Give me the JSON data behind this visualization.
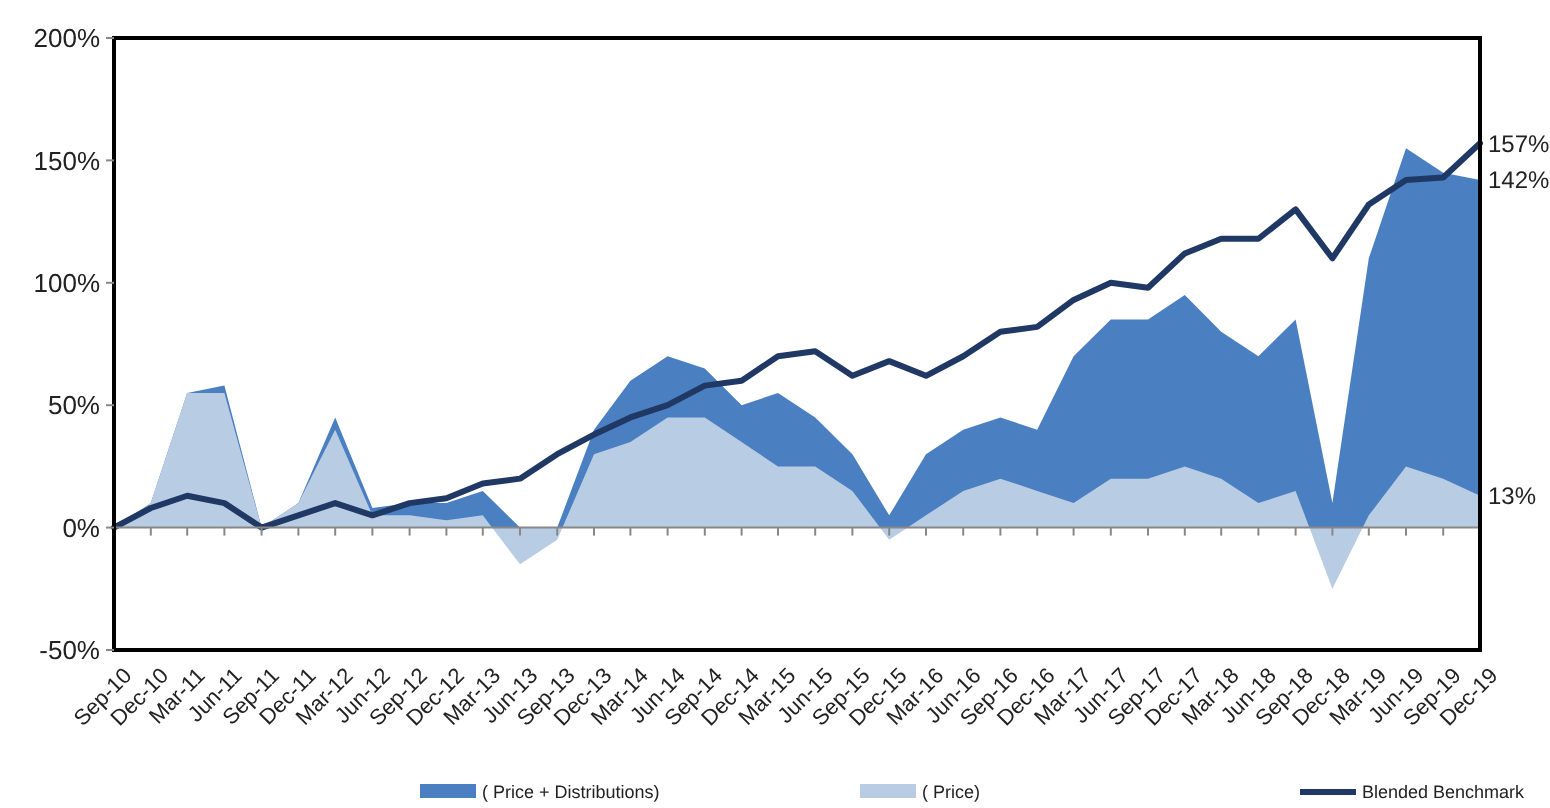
{
  "chart_data": {
    "type": "area",
    "x": [
      "2010-09",
      "2010-12",
      "2011-03",
      "2011-06",
      "2011-09",
      "2011-12",
      "2012-03",
      "2012-06",
      "2012-09",
      "2012-12",
      "2013-03",
      "2013-06",
      "2013-09",
      "2013-12",
      "2014-03",
      "2014-06",
      "2014-09",
      "2014-12",
      "2015-03",
      "2015-06",
      "2015-09",
      "2015-12",
      "2016-03",
      "2016-06",
      "2016-09",
      "2016-12",
      "2017-03",
      "2017-06",
      "2017-09",
      "2017-12",
      "2018-03",
      "2018-06",
      "2018-09",
      "2018-12",
      "2019-03",
      "2019-06",
      "2019-09",
      "2019-12"
    ],
    "series": [
      {
        "name": "( Price + Distributions)",
        "color": "#4a7fc1",
        "values": [
          0,
          10,
          55,
          58,
          0,
          10,
          45,
          8,
          10,
          10,
          15,
          0,
          0,
          40,
          60,
          70,
          65,
          50,
          55,
          45,
          30,
          5,
          30,
          40,
          45,
          40,
          70,
          85,
          85,
          95,
          80,
          70,
          85,
          10,
          110,
          155,
          145,
          142
        ]
      },
      {
        "name": "( Price)",
        "color": "#b8cce4",
        "values": [
          0,
          10,
          55,
          55,
          0,
          10,
          40,
          5,
          5,
          3,
          5,
          -15,
          -5,
          30,
          35,
          45,
          45,
          35,
          25,
          25,
          15,
          -5,
          5,
          15,
          20,
          15,
          10,
          20,
          20,
          25,
          20,
          10,
          15,
          -25,
          5,
          25,
          20,
          13
        ]
      },
      {
        "name": "Blended Benchmark",
        "type": "line",
        "color": "#1f3864",
        "values": [
          0,
          8,
          13,
          10,
          0,
          5,
          10,
          5,
          10,
          12,
          18,
          20,
          30,
          38,
          45,
          50,
          58,
          60,
          70,
          72,
          62,
          68,
          62,
          70,
          80,
          82,
          93,
          100,
          98,
          112,
          118,
          118,
          130,
          110,
          132,
          142,
          143,
          157
        ]
      }
    ],
    "xlim": [
      "2010-09",
      "2019-12"
    ],
    "xticks": [
      {
        "value": "2010-09",
        "label": "Sep-10"
      },
      {
        "value": "2010-12",
        "label": "Dec-10"
      },
      {
        "value": "2011-03",
        "label": "Mar-11"
      },
      {
        "value": "2011-06",
        "label": "Jun-11"
      },
      {
        "value": "2011-09",
        "label": "Sep-11"
      },
      {
        "value": "2011-12",
        "label": "Dec-11"
      },
      {
        "value": "2012-03",
        "label": "Mar-12"
      },
      {
        "value": "2012-06",
        "label": "Jun-12"
      },
      {
        "value": "2012-09",
        "label": "Sep-12"
      },
      {
        "value": "2012-12",
        "label": "Dec-12"
      },
      {
        "value": "2013-03",
        "label": "Mar-13"
      },
      {
        "value": "2013-06",
        "label": "Jun-13"
      },
      {
        "value": "2013-09",
        "label": "Sep-13"
      },
      {
        "value": "2013-12",
        "label": "Dec-13"
      },
      {
        "value": "2014-03",
        "label": "Mar-14"
      },
      {
        "value": "2014-06",
        "label": "Jun-14"
      },
      {
        "value": "2014-09",
        "label": "Sep-14"
      },
      {
        "value": "2014-12",
        "label": "Dec-14"
      },
      {
        "value": "2015-03",
        "label": "Mar-15"
      },
      {
        "value": "2015-06",
        "label": "Jun-15"
      },
      {
        "value": "2015-09",
        "label": "Sep-15"
      },
      {
        "value": "2015-12",
        "label": "Dec-15"
      },
      {
        "value": "2016-03",
        "label": "Mar-16"
      },
      {
        "value": "2016-06",
        "label": "Jun-16"
      },
      {
        "value": "2016-09",
        "label": "Sep-16"
      },
      {
        "value": "2016-12",
        "label": "Dec-16"
      },
      {
        "value": "2017-03",
        "label": "Mar-17"
      },
      {
        "value": "2017-06",
        "label": "Jun-17"
      },
      {
        "value": "2017-09",
        "label": "Sep-17"
      },
      {
        "value": "2017-12",
        "label": "Dec-17"
      },
      {
        "value": "2018-03",
        "label": "Mar-18"
      },
      {
        "value": "2018-06",
        "label": "Jun-18"
      },
      {
        "value": "2018-09",
        "label": "Sep-18"
      },
      {
        "value": "2018-12",
        "label": "Dec-18"
      },
      {
        "value": "2019-03",
        "label": "Mar-19"
      },
      {
        "value": "2019-06",
        "label": "Jun-19"
      },
      {
        "value": "2019-09",
        "label": "Sep-19"
      },
      {
        "value": "2019-12",
        "label": "Dec-19"
      }
    ],
    "ylim": [
      -50,
      200
    ],
    "yticks": [
      {
        "value": -50,
        "label": "-50%"
      },
      {
        "value": 0,
        "label": "0%"
      },
      {
        "value": 50,
        "label": "50%"
      },
      {
        "value": 100,
        "label": "100%"
      },
      {
        "value": 150,
        "label": "150%"
      },
      {
        "value": 200,
        "label": "200%"
      }
    ],
    "annotations": [
      {
        "text": "157%",
        "x": "2019-12",
        "y": 157
      },
      {
        "text": "142%",
        "x": "2019-12",
        "y": 142
      },
      {
        "text": "13%",
        "x": "2019-12",
        "y": 13
      }
    ],
    "legend": "bottom"
  }
}
